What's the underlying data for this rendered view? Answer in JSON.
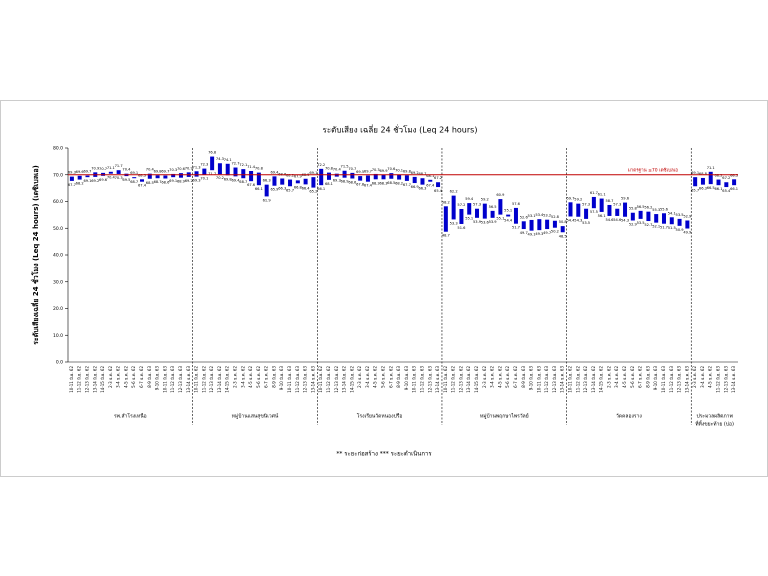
{
  "chart_data": {
    "type": "floating-bar",
    "title": "ระดับเสียง เฉลี่ย 24 ชั่วโมง (Leq 24 hours)",
    "y_label": "ระดับเสียงเฉลี่ย 24 ชั่วโมง (Leq 24 hours) (เดซิเบลเอ)",
    "footnote": "** ระยะก่อสร้าง     *** ระยะดำเนินการ",
    "color": "#0000cc",
    "ylim": [
      0,
      80
    ],
    "yticks": [
      {
        "value": 0,
        "label": "0.0"
      },
      {
        "value": 10,
        "label": "10.0"
      },
      {
        "value": 20,
        "label": "20.0"
      },
      {
        "value": 30,
        "label": "30.0"
      },
      {
        "value": 40,
        "label": "40.0"
      },
      {
        "value": 50,
        "label": "50.0"
      },
      {
        "value": 60,
        "label": "60.0"
      },
      {
        "value": 70,
        "label": "70.0"
      },
      {
        "value": 80,
        "label": "80.0"
      }
    ],
    "reference": {
      "value": 70,
      "label": "มาตรฐาน ≤70 เดซิเบลเอ",
      "color": "#c00000"
    },
    "groups": [
      {
        "label": [
          "รพ.สำโรงเหนือ"
        ],
        "categories": [
          "10-11 มิ.ย. 62",
          "11-12 มิ.ย. 62",
          "12-13 มิ.ย. 62",
          "13-14 มิ.ย. 62",
          "14-15 มิ.ย. 62",
          "2-3 ธ.ค. 62",
          "3-4 ธ.ค. 62",
          "4-5 ธ.ค. 62",
          "5-6 ธ.ค. 62",
          "6-7 ธ.ค. 62",
          "8-9 มิ.ย. 63",
          "9-10 มิ.ย. 63",
          "10-11 มิ.ย. 63",
          "11-12 มิ.ย. 63",
          "12-13 มิ.ย. 63",
          "13-14 ธ.ค. 63"
        ],
        "low": [
          67.7,
          68.2,
          69.1,
          69.2,
          69.6,
          70.4,
          70.3,
          69.5,
          68.7,
          67.4,
          68.5,
          68.7,
          68.6,
          69.1,
          68.9,
          69.2
        ],
        "high": [
          69.3,
          69.6,
          69.7,
          70.9,
          70.7,
          71.1,
          71.7,
          70.4,
          69.1,
          68.3,
          70.4,
          69.8,
          69.7,
          70.3,
          70.6,
          70.9
        ]
      },
      {
        "label": [
          "หมู่บ้านแสนสุขนิเวศน์"
        ],
        "categories": [
          "10-11 มิ.ย. 62",
          "11-12 มิ.ย. 62",
          "12-13 มิ.ย. 62",
          "13-14 มิ.ย. 62",
          "14-15 มิ.ย. 62",
          "2-3 ธ.ค. 62",
          "3-4 ธ.ค. 62",
          "4-5 ธ.ค. 62",
          "5-6 ธ.ค. 62",
          "6-7 ธ.ค. 62",
          "8-9 มิ.ย. 63",
          "9-10 มิ.ย. 63",
          "10-11 มิ.ย. 63",
          "11-12 มิ.ย. 63",
          "12-13 มิ.ย. 63",
          "13-14 ธ.ค. 63"
        ],
        "low": [
          69.3,
          70.1,
          71.7,
          70.2,
          69.8,
          69.4,
          68.7,
          67.6,
          66.1,
          61.9,
          65.9,
          66.3,
          65.7,
          66.8,
          66.4,
          65.2
        ],
        "high": [
          71.3,
          72.3,
          76.8,
          74.3,
          74.1,
          72.7,
          72.1,
          71.4,
          70.8,
          66.3,
          69.4,
          68.6,
          68.2,
          67.9,
          68.5,
          69.1
        ]
      },
      {
        "label": [
          "โรงเรียนวัดหนองปรือ"
        ],
        "categories": [
          "10-11 มิ.ย. 62",
          "11-12 มิ.ย. 62",
          "12-13 มิ.ย. 62",
          "13-14 มิ.ย. 62",
          "14-15 มิ.ย. 62",
          "2-3 ธ.ค. 62",
          "3-4 ธ.ค. 62",
          "4-5 ธ.ค. 62",
          "5-6 ธ.ค. 62",
          "6-7 ธ.ค. 62",
          "8-9 มิ.ย. 63",
          "9-10 มิ.ย. 63",
          "10-11 มิ.ย. 63",
          "11-12 มิ.ย. 63",
          "12-13 มิ.ย. 63",
          "13-14 ธ.ค. 63"
        ],
        "low": [
          66.1,
          68.1,
          69.3,
          68.9,
          68.6,
          67.8,
          67.4,
          68.3,
          68.3,
          68.5,
          68.2,
          67.7,
          66.9,
          66.3,
          67.4,
          65.4
        ],
        "high": [
          72.2,
          70.8,
          70.4,
          71.5,
          70.7,
          69.5,
          69.7,
          70.3,
          69.9,
          70.6,
          70.1,
          69.8,
          69.2,
          68.7,
          68.1,
          67.2
        ]
      },
      {
        "label": [
          "หมู่บ้านพฤกษาไพรวัลย์"
        ],
        "categories": [
          "10-11 มิ.ย. 62",
          "11-12 มิ.ย. 62",
          "12-13 มิ.ย. 62",
          "13-14 มิ.ย. 62",
          "14-15 มิ.ย. 62",
          "2-3 ธ.ค. 62",
          "3-4 ธ.ค. 62",
          "4-5 ธ.ค. 62",
          "5-6 ธ.ค. 62",
          "6-7 ธ.ค. 62",
          "8-9 มิ.ย. 63",
          "9-10 มิ.ย. 63",
          "10-11 มิ.ย. 63",
          "11-12 มิ.ย. 63",
          "12-13 มิ.ย. 63",
          "13-14 ธ.ค. 63"
        ],
        "low": [
          48.7,
          53.3,
          51.6,
          55.1,
          53.9,
          53.6,
          53.9,
          55.1,
          54.4,
          51.7,
          49.7,
          49.1,
          49.3,
          49.7,
          50.2,
          48.5
        ],
        "high": [
          58.2,
          62.2,
          57.2,
          59.4,
          57.3,
          59.2,
          56.5,
          60.9,
          55.1,
          57.6,
          52.6,
          53.1,
          53.4,
          53.2,
          52.8,
          50.8
        ]
      },
      {
        "label": [
          "วัดคลองราง"
        ],
        "categories": [
          "10-11 มิ.ย. 62",
          "11-12 มิ.ย. 62",
          "12-13 มิ.ย. 62",
          "13-14 มิ.ย. 62",
          "14-15 มิ.ย. 62",
          "2-3 ธ.ค. 62",
          "3-4 ธ.ค. 62",
          "4-5 ธ.ค. 62",
          "5-6 ธ.ค. 62",
          "6-7 ธ.ค. 62",
          "8-9 มิ.ย. 63",
          "9-10 มิ.ย. 63",
          "10-11 มิ.ย. 63",
          "11-12 มิ.ย. 63",
          "12-13 มิ.ย. 63",
          "13-14 ธ.ค. 63"
        ],
        "low": [
          54.4,
          54.3,
          53.5,
          57.5,
          56.1,
          54.6,
          54.6,
          54.3,
          52.9,
          53.5,
          52.7,
          52.1,
          51.7,
          51.5,
          50.9,
          49.9
        ],
        "high": [
          59.7,
          59.2,
          57.3,
          61.7,
          61.1,
          58.7,
          57.3,
          59.6,
          55.8,
          56.5,
          56.2,
          55.3,
          55.6,
          54.1,
          53.5,
          52.9
        ]
      },
      {
        "label": [
          "ประมวลผลิตภาพ",
          "ที่ทิ้งขยะท้าย (บ่อ)"
        ],
        "categories": [
          "2-3 ธ.ค. 62",
          "3-4 ธ.ค. 62",
          "4-5 ธ.ค. 62",
          "11-12 มิ.ย. 63",
          "12-13 มิ.ย. 63",
          "13-14 ธ.ค. 63"
        ],
        "low": [
          65.7,
          66.3,
          66.5,
          66.1,
          65.4,
          66.1
        ],
        "high": [
          69.1,
          68.8,
          71.1,
          68.2,
          67.2,
          68.3
        ]
      }
    ]
  }
}
